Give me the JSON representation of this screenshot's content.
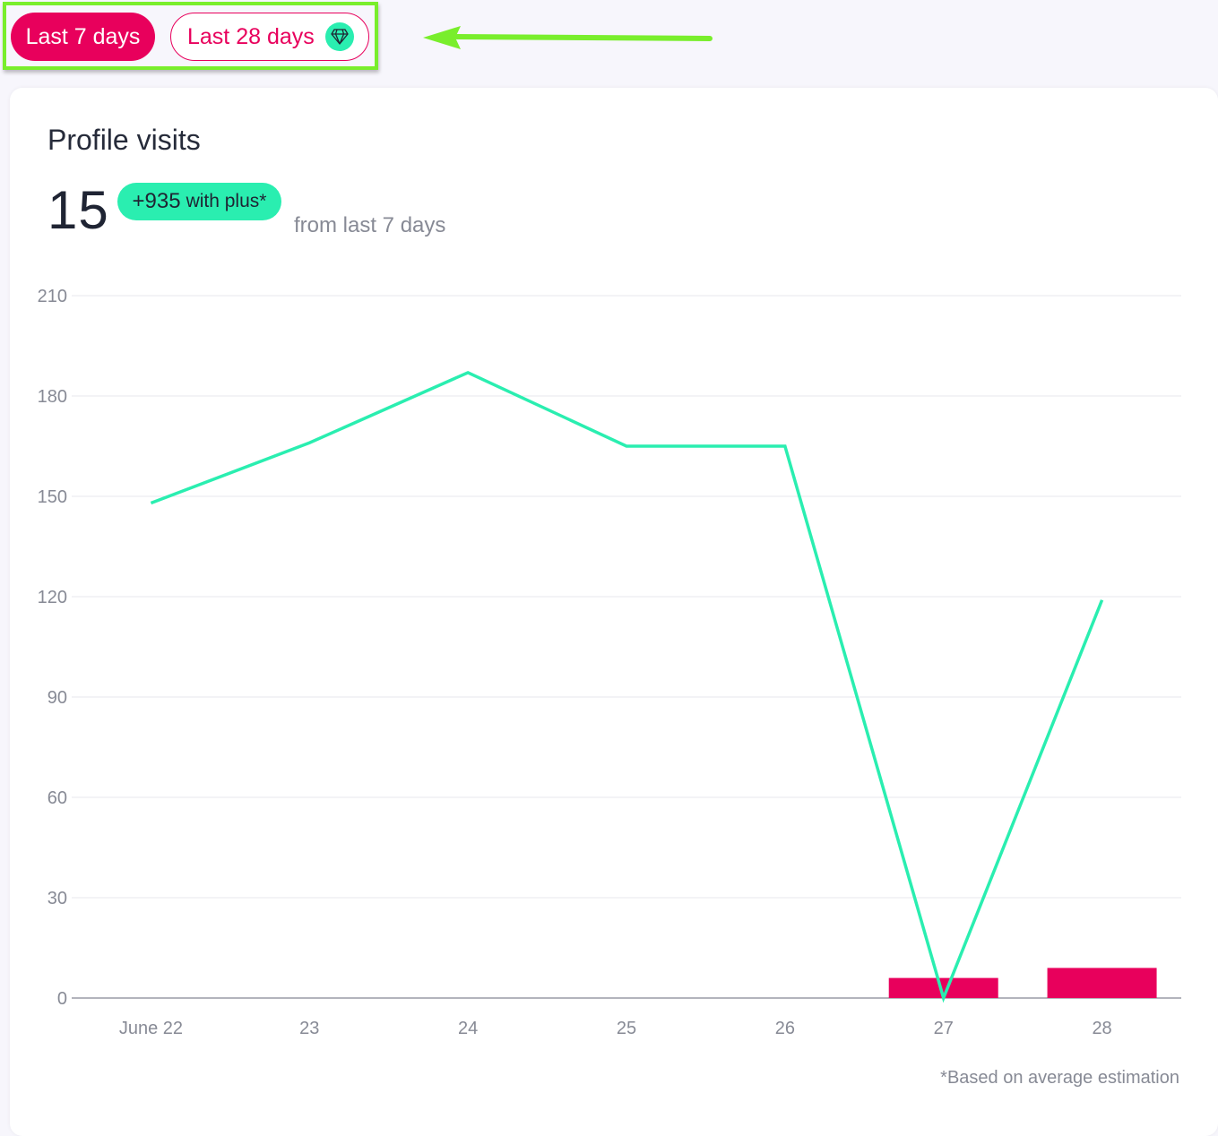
{
  "range_selector": {
    "last7_label": "Last 7 days",
    "last28_label": "Last 28 days",
    "premium_icon": "gem-icon",
    "accent_color": "#e8005c",
    "premium_color": "#2aeeb0"
  },
  "annotation": {
    "highlight_color": "#79ee2c",
    "arrow_icon": "left-arrow-icon"
  },
  "card": {
    "title": "Profile visits",
    "total": "15",
    "plus_amount": "+935",
    "plus_text": "with plus*",
    "period": "from last 7 days",
    "footnote": "*Based on average estimation"
  },
  "chart_data": {
    "type": "bar",
    "categories": [
      "June 22",
      "23",
      "24",
      "25",
      "26",
      "27",
      "28"
    ],
    "ylim": [
      0,
      210
    ],
    "yticks": [
      0,
      30,
      60,
      90,
      120,
      150,
      180,
      210
    ],
    "grid": true,
    "series": [
      {
        "type": "bar",
        "color": "#e8005c",
        "values": [
          0,
          0,
          0,
          0,
          0,
          6,
          9
        ]
      },
      {
        "type": "line",
        "color": "#2aeeb0",
        "values": [
          148,
          166,
          187,
          165,
          165,
          0,
          119
        ]
      }
    ]
  }
}
